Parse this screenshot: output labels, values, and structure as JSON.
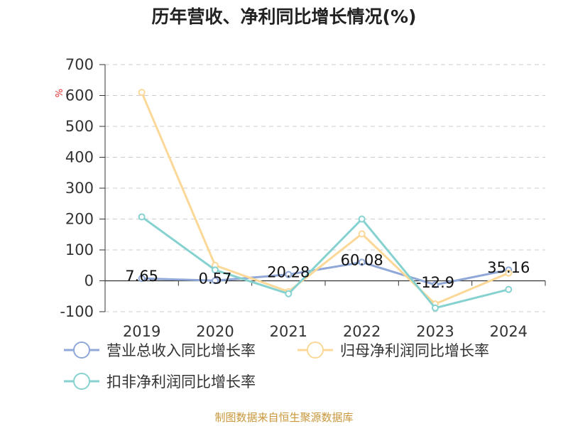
{
  "chart_data": {
    "type": "line",
    "title": "历年营收、净利同比增长情况(%)",
    "unit_label": "%",
    "categories": [
      "2019",
      "2020",
      "2021",
      "2022",
      "2023",
      "2024"
    ],
    "ylim": [
      -100,
      700
    ],
    "yticks": [
      -100,
      0,
      100,
      200,
      300,
      400,
      500,
      600,
      700
    ],
    "grid": true,
    "legend_position": "bottom",
    "series": [
      {
        "name": "营业总收入同比增长率",
        "color": "#8fa8d8",
        "values": [
          7.65,
          0.57,
          20.28,
          60.08,
          -12.9,
          35.16
        ],
        "labels": [
          "7.65",
          "0.57",
          "20.28",
          "60.08",
          "-12.9",
          "35.16"
        ]
      },
      {
        "name": "归母净利润同比增长率",
        "color": "#fcd898",
        "values": [
          610,
          50,
          -35,
          152,
          -75,
          25
        ]
      },
      {
        "name": "扣非净利润同比增长率",
        "color": "#86d2d0",
        "values": [
          207,
          35,
          -42,
          200,
          -88,
          -28
        ]
      }
    ],
    "source": "制图数据来自恒生聚源数据库"
  }
}
